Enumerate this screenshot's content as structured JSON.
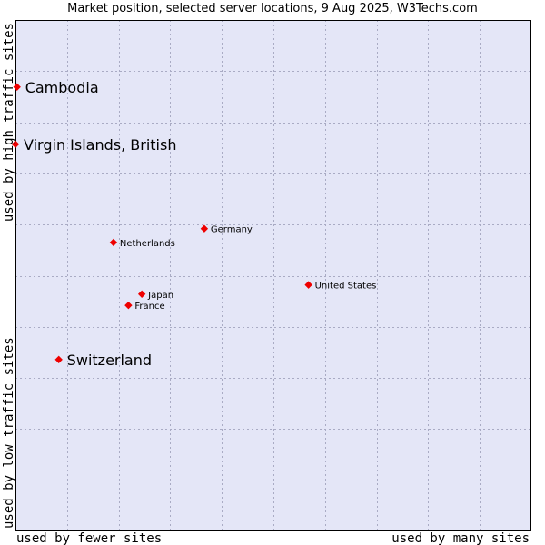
{
  "chart_data": {
    "type": "scatter",
    "title": "Market position, selected server locations, 9 Aug 2025, W3Techs.com",
    "xlabel_left": "used by fewer sites",
    "xlabel_right": "used by many sites",
    "ylabel_bottom": "used by low traffic sites",
    "ylabel_top": "used by high traffic sites",
    "xlim": [
      0,
      100
    ],
    "ylim": [
      0,
      100
    ],
    "grid": true,
    "colors": {
      "plot_bg": "#e4e6f7",
      "grid": "#a9abc4",
      "border": "#000000",
      "marker": "#ee0000"
    },
    "points": [
      {
        "name": "Cambodia",
        "x": 0.3,
        "y": 86.9,
        "emphasis": true
      },
      {
        "name": "Virgin Islands, British",
        "x": 0.0,
        "y": 75.7,
        "emphasis": true
      },
      {
        "name": "Germany",
        "x": 36.6,
        "y": 59.2,
        "emphasis": false
      },
      {
        "name": "Netherlands",
        "x": 19.0,
        "y": 56.5,
        "emphasis": false
      },
      {
        "name": "United States",
        "x": 56.8,
        "y": 48.2,
        "emphasis": false
      },
      {
        "name": "Japan",
        "x": 24.5,
        "y": 46.4,
        "emphasis": false
      },
      {
        "name": "France",
        "x": 21.9,
        "y": 44.2,
        "emphasis": false
      },
      {
        "name": "Switzerland",
        "x": 8.4,
        "y": 33.6,
        "emphasis": true
      }
    ]
  }
}
